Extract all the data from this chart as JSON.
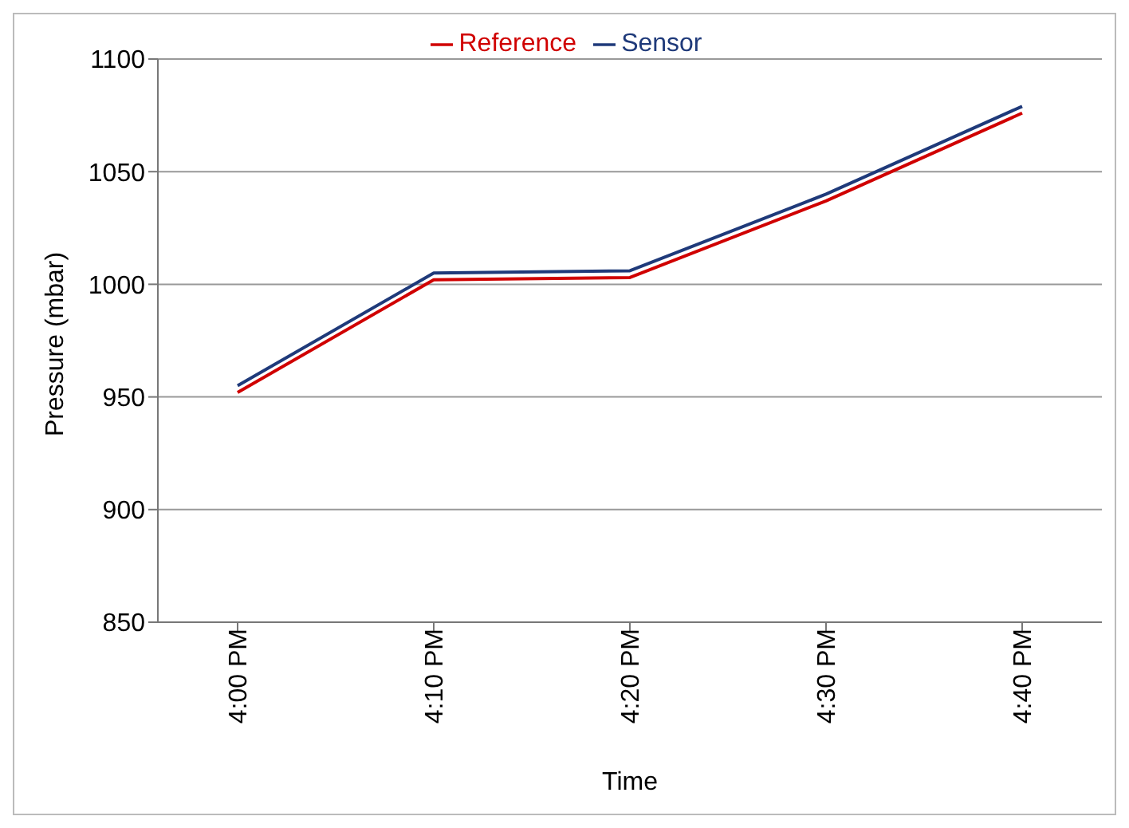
{
  "chart_data": {
    "type": "line",
    "xlabel": "Time",
    "ylabel": "Pressure (mbar)",
    "categories": [
      "4:00 PM",
      "4:10 PM",
      "4:20 PM",
      "4:30 PM",
      "4:40 PM"
    ],
    "series": [
      {
        "name": "Sensor",
        "color": "#1f3a7a",
        "values": [
          955,
          1005,
          1006,
          1040,
          1079
        ]
      },
      {
        "name": "Reference",
        "color": "#d00000",
        "values": [
          952,
          1002,
          1003,
          1037,
          1076
        ]
      }
    ],
    "ylim": [
      850,
      1100
    ],
    "yticks": [
      850,
      900,
      950,
      1000,
      1050,
      1100
    ],
    "grid": "y",
    "legend": "top",
    "marker": "none",
    "line_style": "solid"
  }
}
